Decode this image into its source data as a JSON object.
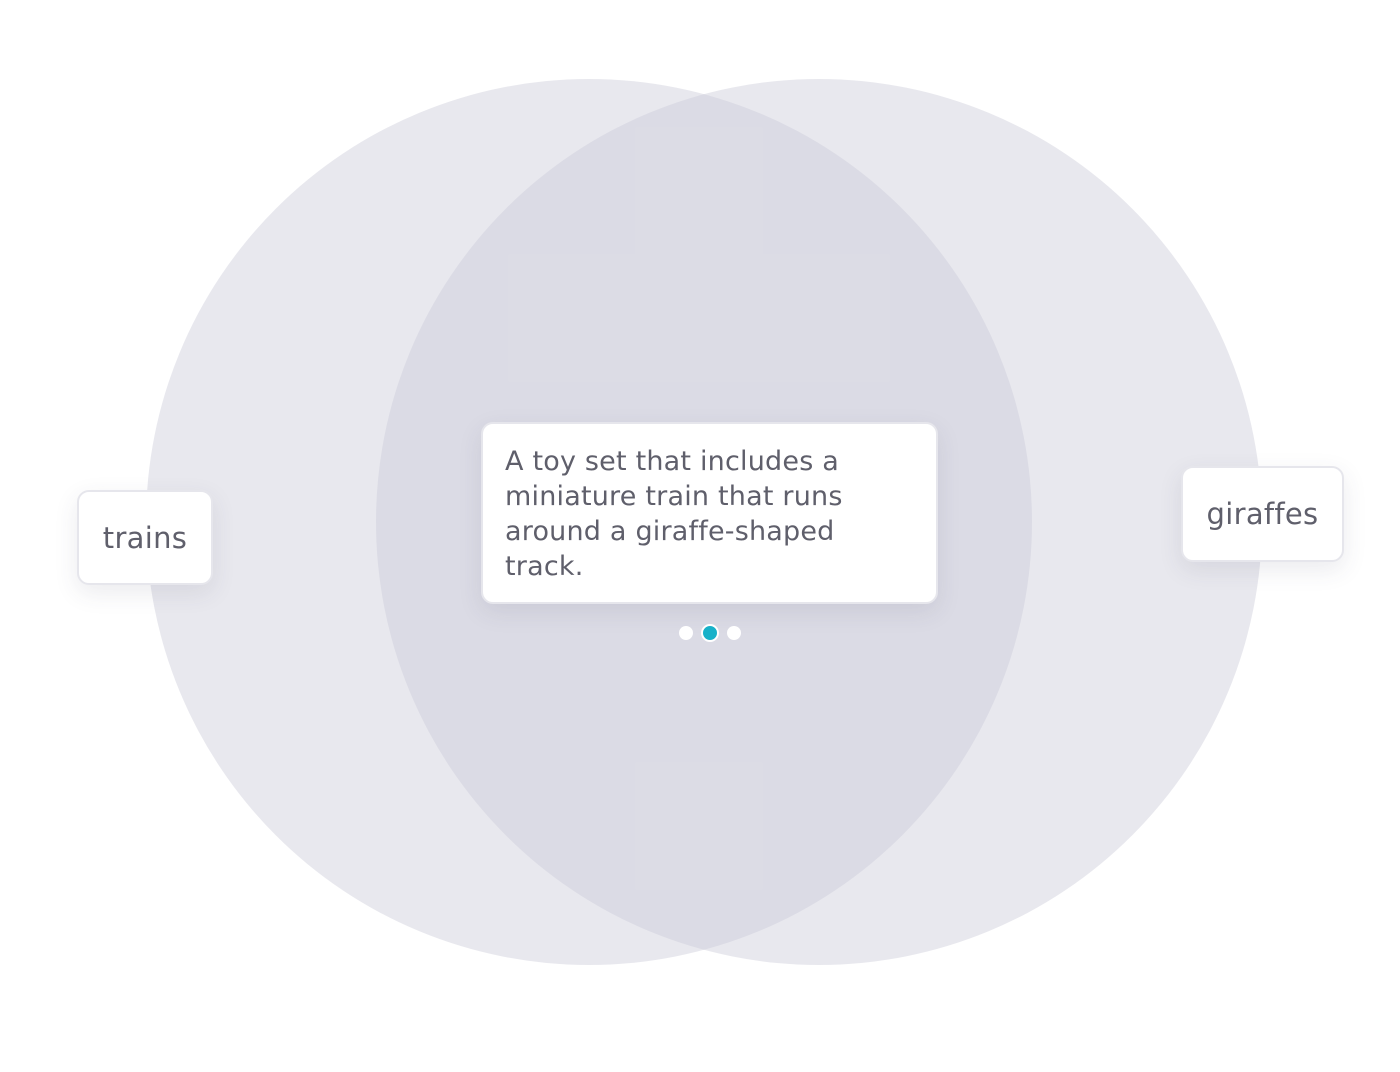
{
  "venn": {
    "sets": [
      {
        "label": "trains"
      },
      {
        "label": "giraffes"
      }
    ],
    "intersection": {
      "ideas": [
        {
          "text": "A toy set that includes a miniature train that runs around a giraffe-shaped track."
        }
      ]
    }
  },
  "pager": {
    "total_pages": 3,
    "current_page": 2,
    "dot_color": "#ffffff",
    "active_dot_color": "#17b1c9"
  },
  "colors": {
    "circle_fill": "#e8e8ee",
    "overlap_fill": "#dcdce4",
    "card_text": "#5f5f6b"
  }
}
